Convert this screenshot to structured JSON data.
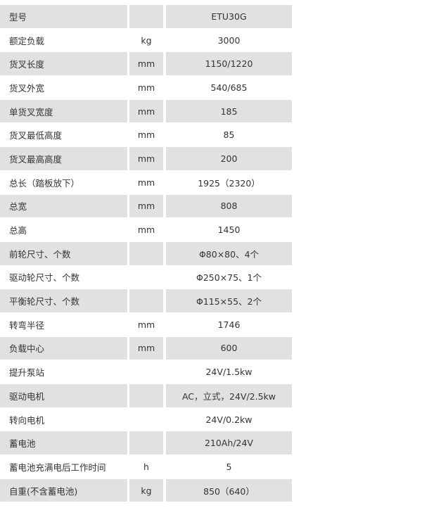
{
  "table": {
    "rows": [
      {
        "label": "型号",
        "unit": "",
        "value": "ETU30G"
      },
      {
        "label": "额定负载",
        "unit": "kg",
        "value": "3000"
      },
      {
        "label": "货叉长度",
        "unit": "mm",
        "value": "1150/1220"
      },
      {
        "label": "货叉外宽",
        "unit": "mm",
        "value": "540/685"
      },
      {
        "label": "单货叉宽度",
        "unit": "mm",
        "value": "185"
      },
      {
        "label": "货叉最低高度",
        "unit": "mm",
        "value": "85"
      },
      {
        "label": "货叉最高高度",
        "unit": "mm",
        "value": "200"
      },
      {
        "label": "总长（踏板放下）",
        "unit": "mm",
        "value": "1925（2320）"
      },
      {
        "label": "总宽",
        "unit": "mm",
        "value": "808"
      },
      {
        "label": "总高",
        "unit": "mm",
        "value": "1450"
      },
      {
        "label": "前轮尺寸、个数",
        "unit": "",
        "value": "Φ80×80、4个"
      },
      {
        "label": "驱动轮尺寸、个数",
        "unit": "",
        "value": "Φ250×75、1个"
      },
      {
        "label": "平衡轮尺寸、个数",
        "unit": "",
        "value": "Φ115×55、2个"
      },
      {
        "label": "转弯半径",
        "unit": "mm",
        "value": "1746"
      },
      {
        "label": "负载中心",
        "unit": "mm",
        "value": "600"
      },
      {
        "label": "提升泵站",
        "unit": "",
        "value": "24V/1.5kw"
      },
      {
        "label": "驱动电机",
        "unit": "",
        "value": "AC，立式，24V/2.5kw"
      },
      {
        "label": "转向电机",
        "unit": "",
        "value": "24V/0.2kw"
      },
      {
        "label": "蓄电池",
        "unit": "",
        "value": "210Ah/24V"
      },
      {
        "label": "蓄电池充满电后工作时间",
        "unit": "h",
        "value": "5"
      },
      {
        "label": "自重(不含蓄电池)",
        "unit": "kg",
        "value": "850（640）"
      }
    ],
    "colors": {
      "stripe": "#e1e1e1",
      "text": "#333333"
    }
  }
}
